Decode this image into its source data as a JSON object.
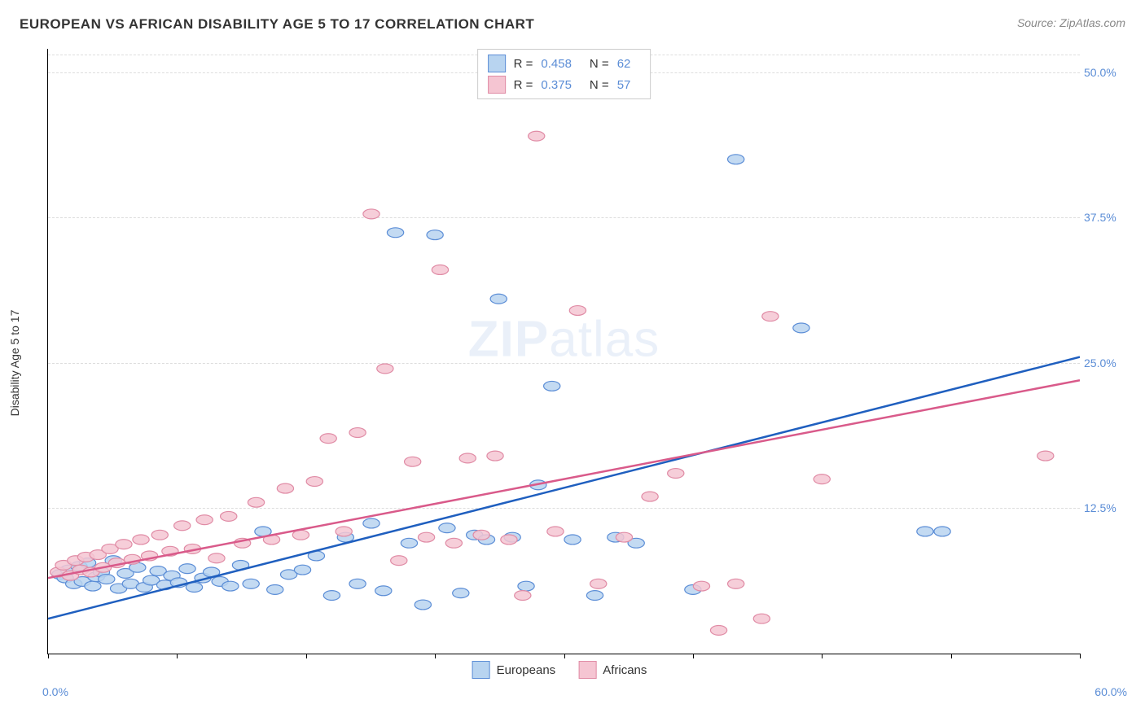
{
  "title": "EUROPEAN VS AFRICAN DISABILITY AGE 5 TO 17 CORRELATION CHART",
  "source": "Source: ZipAtlas.com",
  "ylabel": "Disability Age 5 to 17",
  "watermark_bold": "ZIP",
  "watermark_rest": "atlas",
  "chart": {
    "type": "scatter",
    "xlim": [
      0,
      60
    ],
    "ylim": [
      0,
      52
    ],
    "x_ticks": [
      0,
      7.5,
      15,
      22.5,
      30,
      37.5,
      45,
      52.5,
      60
    ],
    "y_grid": [
      12.5,
      25.0,
      37.5,
      50.0
    ],
    "y_tick_labels": [
      "12.5%",
      "25.0%",
      "37.5%",
      "50.0%"
    ],
    "x_min_label": "0.0%",
    "x_max_label": "60.0%",
    "grid_color": "#dddddd",
    "axis_color": "#000000",
    "tick_label_color": "#5b8dd6",
    "background": "#ffffff",
    "marker_radius": 8,
    "marker_stroke_width": 1.2,
    "trend_line_width": 2.5,
    "series": [
      {
        "name": "Europeans",
        "fill": "#b8d4f0",
        "stroke": "#5b8dd6",
        "line_color": "#1f5fbf",
        "r_value": "0.458",
        "n_value": "62",
        "trend": {
          "x1": 0,
          "y1": 3.0,
          "x2": 60,
          "y2": 25.5
        },
        "points": [
          [
            0.7,
            6.8
          ],
          [
            1.0,
            6.5
          ],
          [
            1.2,
            7.2
          ],
          [
            1.5,
            6.0
          ],
          [
            1.8,
            7.5
          ],
          [
            2.0,
            6.2
          ],
          [
            2.3,
            7.8
          ],
          [
            2.6,
            5.8
          ],
          [
            2.8,
            6.6
          ],
          [
            3.1,
            7.0
          ],
          [
            3.4,
            6.4
          ],
          [
            3.8,
            8.0
          ],
          [
            4.1,
            5.6
          ],
          [
            4.5,
            6.9
          ],
          [
            4.8,
            6.0
          ],
          [
            5.2,
            7.4
          ],
          [
            5.6,
            5.7
          ],
          [
            6.0,
            6.3
          ],
          [
            6.4,
            7.1
          ],
          [
            6.8,
            5.9
          ],
          [
            7.2,
            6.7
          ],
          [
            7.6,
            6.1
          ],
          [
            8.1,
            7.3
          ],
          [
            8.5,
            5.7
          ],
          [
            9.0,
            6.5
          ],
          [
            9.5,
            7.0
          ],
          [
            10.0,
            6.2
          ],
          [
            10.6,
            5.8
          ],
          [
            11.2,
            7.6
          ],
          [
            11.8,
            6.0
          ],
          [
            12.5,
            10.5
          ],
          [
            13.2,
            5.5
          ],
          [
            14.0,
            6.8
          ],
          [
            14.8,
            7.2
          ],
          [
            15.6,
            8.4
          ],
          [
            16.5,
            5.0
          ],
          [
            17.3,
            10.0
          ],
          [
            18.0,
            6.0
          ],
          [
            18.8,
            11.2
          ],
          [
            19.5,
            5.4
          ],
          [
            20.2,
            36.2
          ],
          [
            21.0,
            9.5
          ],
          [
            21.8,
            4.2
          ],
          [
            22.5,
            36.0
          ],
          [
            23.2,
            10.8
          ],
          [
            24.0,
            5.2
          ],
          [
            24.8,
            10.2
          ],
          [
            25.5,
            9.8
          ],
          [
            26.2,
            30.5
          ],
          [
            27.0,
            10.0
          ],
          [
            27.8,
            5.8
          ],
          [
            28.5,
            14.5
          ],
          [
            29.3,
            23.0
          ],
          [
            30.5,
            9.8
          ],
          [
            31.8,
            5.0
          ],
          [
            33.0,
            10.0
          ],
          [
            34.2,
            9.5
          ],
          [
            37.5,
            5.5
          ],
          [
            40.0,
            42.5
          ],
          [
            43.8,
            28.0
          ],
          [
            51.0,
            10.5
          ],
          [
            52.0,
            10.5
          ]
        ]
      },
      {
        "name": "Africans",
        "fill": "#f5c5d2",
        "stroke": "#e08ba5",
        "line_color": "#d95a8a",
        "r_value": "0.375",
        "n_value": "57",
        "trend": {
          "x1": 0,
          "y1": 6.5,
          "x2": 60,
          "y2": 23.5
        },
        "points": [
          [
            0.6,
            7.0
          ],
          [
            0.9,
            7.6
          ],
          [
            1.3,
            6.7
          ],
          [
            1.6,
            8.0
          ],
          [
            1.9,
            7.2
          ],
          [
            2.2,
            8.3
          ],
          [
            2.5,
            7.0
          ],
          [
            2.9,
            8.5
          ],
          [
            3.2,
            7.4
          ],
          [
            3.6,
            9.0
          ],
          [
            4.0,
            7.8
          ],
          [
            4.4,
            9.4
          ],
          [
            4.9,
            8.1
          ],
          [
            5.4,
            9.8
          ],
          [
            5.9,
            8.4
          ],
          [
            6.5,
            10.2
          ],
          [
            7.1,
            8.8
          ],
          [
            7.8,
            11.0
          ],
          [
            8.4,
            9.0
          ],
          [
            9.1,
            11.5
          ],
          [
            9.8,
            8.2
          ],
          [
            10.5,
            11.8
          ],
          [
            11.3,
            9.5
          ],
          [
            12.1,
            13.0
          ],
          [
            13.0,
            9.8
          ],
          [
            13.8,
            14.2
          ],
          [
            14.7,
            10.2
          ],
          [
            15.5,
            14.8
          ],
          [
            16.3,
            18.5
          ],
          [
            17.2,
            10.5
          ],
          [
            18.0,
            19.0
          ],
          [
            18.8,
            37.8
          ],
          [
            19.6,
            24.5
          ],
          [
            20.4,
            8.0
          ],
          [
            21.2,
            16.5
          ],
          [
            22.0,
            10.0
          ],
          [
            22.8,
            33.0
          ],
          [
            23.6,
            9.5
          ],
          [
            24.4,
            16.8
          ],
          [
            25.2,
            10.2
          ],
          [
            26.0,
            17.0
          ],
          [
            26.8,
            9.8
          ],
          [
            27.6,
            5.0
          ],
          [
            28.4,
            44.5
          ],
          [
            29.5,
            10.5
          ],
          [
            30.8,
            29.5
          ],
          [
            32.0,
            6.0
          ],
          [
            33.5,
            10.0
          ],
          [
            35.0,
            13.5
          ],
          [
            36.5,
            15.5
          ],
          [
            38.0,
            5.8
          ],
          [
            40.0,
            6.0
          ],
          [
            41.5,
            3.0
          ],
          [
            42.0,
            29.0
          ],
          [
            45.0,
            15.0
          ],
          [
            58.0,
            17.0
          ],
          [
            39.0,
            2.0
          ]
        ]
      }
    ]
  },
  "legend_bottom": [
    {
      "label": "Europeans"
    },
    {
      "label": "Africans"
    }
  ],
  "legend_top_r_label": "R =",
  "legend_top_n_label": "N ="
}
